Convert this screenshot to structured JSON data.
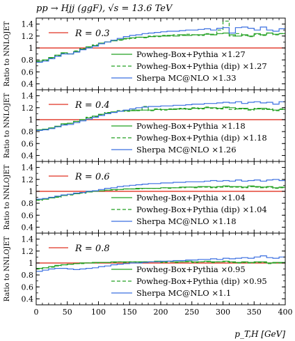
{
  "title": "pp → Hjj (ggF), √s = 13.6 TeV",
  "colors": {
    "green": "#22a022",
    "blue": "#3a6fe0",
    "red": "#e03020"
  },
  "chart_data": {
    "type": "line",
    "xlabel": "p_T,H [GeV]",
    "ylabel": "Ratio to NNLOJET",
    "xlim": [
      0,
      400
    ],
    "ylim": [
      0.3,
      1.5
    ],
    "xticks": [
      0,
      50,
      100,
      150,
      200,
      250,
      300,
      350,
      400
    ],
    "yticks": [
      0.4,
      0.6,
      0.8,
      1,
      1.2,
      1.4
    ],
    "x_edges": [
      0,
      10,
      20,
      30,
      40,
      50,
      60,
      70,
      80,
      90,
      100,
      110,
      120,
      130,
      140,
      150,
      160,
      170,
      180,
      190,
      200,
      210,
      220,
      230,
      240,
      250,
      260,
      270,
      280,
      290,
      300,
      310,
      320,
      330,
      340,
      350,
      360,
      370,
      380,
      390,
      400
    ],
    "panels": [
      {
        "label": "R = 0.3",
        "reference": 1,
        "series": [
          {
            "name": "Powheg-Box+Pythia ×1.27",
            "style": "solid",
            "color": "green",
            "values": [
              0.78,
              0.8,
              0.84,
              0.88,
              0.92,
              0.9,
              0.94,
              0.98,
              1.02,
              1.04,
              1.08,
              1.1,
              1.12,
              1.14,
              1.16,
              1.17,
              1.18,
              1.18,
              1.19,
              1.2,
              1.2,
              1.21,
              1.2,
              1.22,
              1.21,
              1.22,
              1.22,
              1.23,
              1.22,
              1.24,
              1.25,
              1.22,
              1.2,
              1.22,
              1.2,
              1.24,
              1.22,
              1.25,
              1.23,
              1.24
            ]
          },
          {
            "name": "Powheg-Box+Pythia (dip) ×1.27",
            "style": "dashed",
            "color": "green",
            "values": [
              0.77,
              0.79,
              0.83,
              0.87,
              0.91,
              0.9,
              0.95,
              0.99,
              1.01,
              1.05,
              1.07,
              1.1,
              1.13,
              1.13,
              1.15,
              1.16,
              1.18,
              1.17,
              1.2,
              1.19,
              1.21,
              1.2,
              1.22,
              1.21,
              1.23,
              1.22,
              1.21,
              1.24,
              1.23,
              1.3,
              1.45,
              1.2,
              1.24,
              1.21,
              1.19,
              1.23,
              1.21,
              1.25,
              1.22,
              1.24
            ]
          },
          {
            "name": "Sherpa MC@NLO ×1.33",
            "style": "solid",
            "color": "blue",
            "values": [
              0.76,
              0.78,
              0.82,
              0.86,
              0.9,
              0.9,
              0.93,
              0.97,
              1.0,
              1.03,
              1.07,
              1.1,
              1.13,
              1.16,
              1.19,
              1.21,
              1.22,
              1.24,
              1.25,
              1.26,
              1.27,
              1.28,
              1.28,
              1.29,
              1.3,
              1.3,
              1.31,
              1.32,
              1.3,
              1.33,
              1.34,
              1.25,
              1.34,
              1.35,
              1.33,
              1.3,
              1.35,
              1.3,
              1.28,
              1.32
            ]
          }
        ]
      },
      {
        "label": "R = 0.4",
        "reference": 1,
        "series": [
          {
            "name": "Powheg-Box+Pythia ×1.18",
            "style": "solid",
            "color": "green",
            "values": [
              0.83,
              0.84,
              0.86,
              0.89,
              0.93,
              0.94,
              0.97,
              1.0,
              1.03,
              1.06,
              1.09,
              1.11,
              1.13,
              1.14,
              1.15,
              1.15,
              1.16,
              1.16,
              1.16,
              1.17,
              1.17,
              1.17,
              1.18,
              1.18,
              1.18,
              1.19,
              1.19,
              1.2,
              1.2,
              1.19,
              1.21,
              1.2,
              1.18,
              1.19,
              1.17,
              1.18,
              1.19,
              1.17,
              1.16,
              1.17
            ]
          },
          {
            "name": "Powheg-Box+Pythia (dip) ×1.18",
            "style": "dashed",
            "color": "green",
            "values": [
              0.82,
              0.83,
              0.86,
              0.88,
              0.92,
              0.94,
              0.97,
              1.0,
              1.04,
              1.05,
              1.08,
              1.12,
              1.13,
              1.15,
              1.14,
              1.16,
              1.15,
              1.22,
              1.15,
              1.18,
              1.16,
              1.18,
              1.17,
              1.19,
              1.17,
              1.2,
              1.18,
              1.21,
              1.19,
              1.18,
              1.2,
              1.17,
              1.19,
              1.18,
              1.16,
              1.19,
              1.17,
              1.18,
              1.15,
              1.18
            ]
          },
          {
            "name": "Sherpa MC@NLO ×1.26",
            "style": "solid",
            "color": "blue",
            "values": [
              0.82,
              0.83,
              0.85,
              0.88,
              0.91,
              0.92,
              0.95,
              0.98,
              1.01,
              1.04,
              1.07,
              1.1,
              1.12,
              1.14,
              1.16,
              1.18,
              1.2,
              1.21,
              1.22,
              1.22,
              1.23,
              1.23,
              1.24,
              1.24,
              1.25,
              1.26,
              1.26,
              1.27,
              1.27,
              1.28,
              1.29,
              1.28,
              1.3,
              1.27,
              1.29,
              1.3,
              1.28,
              1.29,
              1.26,
              1.3
            ]
          }
        ]
      },
      {
        "label": "R = 0.6",
        "reference": 1,
        "series": [
          {
            "name": "Powheg-Box+Pythia ×1.04",
            "style": "solid",
            "color": "green",
            "values": [
              0.86,
              0.87,
              0.89,
              0.91,
              0.93,
              0.95,
              0.96,
              0.98,
              0.99,
              1.0,
              1.01,
              1.02,
              1.03,
              1.03,
              1.04,
              1.04,
              1.05,
              1.05,
              1.05,
              1.05,
              1.06,
              1.06,
              1.06,
              1.07,
              1.07,
              1.07,
              1.08,
              1.08,
              1.07,
              1.08,
              1.09,
              1.08,
              1.08,
              1.07,
              1.09,
              1.08,
              1.07,
              1.08,
              1.06,
              1.07
            ]
          },
          {
            "name": "Powheg-Box+Pythia (dip) ×1.04",
            "style": "dashed",
            "color": "green",
            "values": [
              0.85,
              0.87,
              0.89,
              0.9,
              0.93,
              0.94,
              0.96,
              0.97,
              0.99,
              1.0,
              1.01,
              1.02,
              1.02,
              1.03,
              1.04,
              1.04,
              1.04,
              1.05,
              1.05,
              1.05,
              1.06,
              1.05,
              1.06,
              1.06,
              1.07,
              1.06,
              1.07,
              1.07,
              1.06,
              1.07,
              1.08,
              1.07,
              1.07,
              1.06,
              1.08,
              1.07,
              1.06,
              1.07,
              1.05,
              1.06
            ]
          },
          {
            "name": "Sherpa MC@NLO ×1.18",
            "style": "solid",
            "color": "blue",
            "values": [
              0.87,
              0.88,
              0.9,
              0.92,
              0.94,
              0.95,
              0.97,
              0.98,
              1.0,
              1.01,
              1.03,
              1.05,
              1.06,
              1.08,
              1.09,
              1.1,
              1.11,
              1.12,
              1.13,
              1.13,
              1.14,
              1.14,
              1.15,
              1.15,
              1.16,
              1.16,
              1.16,
              1.17,
              1.18,
              1.17,
              1.18,
              1.17,
              1.19,
              1.17,
              1.18,
              1.19,
              1.17,
              1.19,
              1.2,
              1.18
            ]
          }
        ]
      },
      {
        "label": "R = 0.8",
        "reference": 1,
        "series": [
          {
            "name": "Powheg-Box+Pythia ×0.95",
            "style": "solid",
            "color": "green",
            "values": [
              0.91,
              0.92,
              0.94,
              0.96,
              0.97,
              0.98,
              0.99,
              1.0,
              1.0,
              1.01,
              1.01,
              1.01,
              1.02,
              1.02,
              1.02,
              1.02,
              1.02,
              1.02,
              1.02,
              1.03,
              1.02,
              1.03,
              1.02,
              1.02,
              1.03,
              1.02,
              1.02,
              1.03,
              1.02,
              1.02,
              1.03,
              1.02,
              1.01,
              1.02,
              1.01,
              1.02,
              1.02,
              1.0,
              1.01,
              1.01
            ]
          },
          {
            "name": "Powheg-Box+Pythia (dip) ×0.95",
            "style": "dashed",
            "color": "green",
            "values": [
              0.9,
              0.92,
              0.93,
              0.95,
              0.97,
              0.98,
              0.99,
              0.99,
              1.0,
              1.0,
              1.01,
              1.01,
              1.01,
              1.02,
              1.01,
              1.02,
              1.01,
              1.02,
              1.02,
              1.02,
              1.01,
              1.02,
              1.01,
              1.02,
              1.02,
              1.01,
              1.02,
              1.02,
              1.01,
              1.02,
              1.02,
              1.01,
              1.0,
              1.01,
              1.0,
              1.01,
              1.01,
              0.99,
              1.0,
              1.0
            ]
          },
          {
            "name": "Sherpa MC@NLO ×1.1",
            "style": "solid",
            "color": "blue",
            "values": [
              0.86,
              0.88,
              0.9,
              0.91,
              0.91,
              0.9,
              0.89,
              0.9,
              0.91,
              0.92,
              0.94,
              0.95,
              0.97,
              0.98,
              0.99,
              1.0,
              1.0,
              1.01,
              1.02,
              1.02,
              1.03,
              1.03,
              1.04,
              1.04,
              1.05,
              1.05,
              1.06,
              1.06,
              1.07,
              1.06,
              1.08,
              1.07,
              1.08,
              1.09,
              1.08,
              1.1,
              1.12,
              1.09,
              1.08,
              1.1
            ]
          }
        ]
      }
    ]
  }
}
